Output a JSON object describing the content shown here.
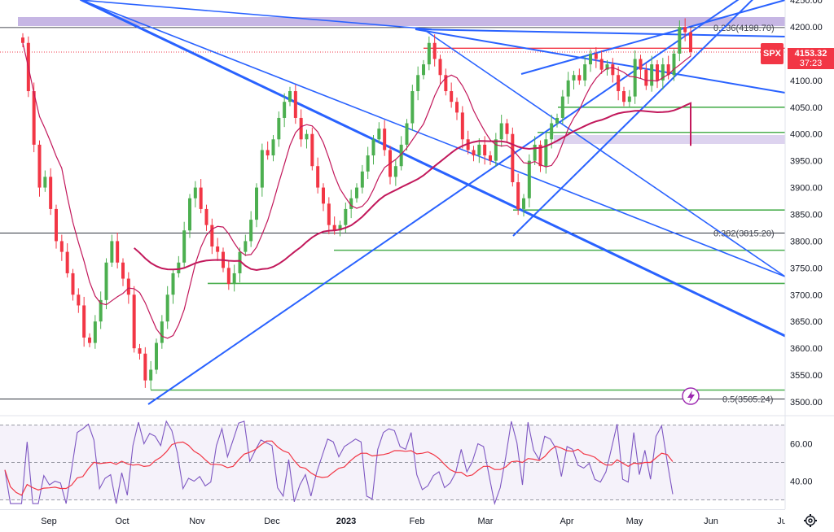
{
  "symbol_tag": "SPX",
  "last_price": "4153.32",
  "countdown": "37:23",
  "price_axis": {
    "ticks": [
      "4250.00",
      "4200.00",
      "4150.00",
      "4100.00",
      "4050.00",
      "4000.00",
      "3950.00",
      "3900.00",
      "3850.00",
      "3800.00",
      "3750.00",
      "3700.00",
      "3650.00",
      "3600.00",
      "3550.00",
      "3500.00"
    ],
    "values": [
      4250,
      4200,
      4150,
      4100,
      4050,
      4000,
      3950,
      3900,
      3850,
      3800,
      3750,
      3700,
      3650,
      3600,
      3550,
      3500
    ]
  },
  "rsi_axis": {
    "ticks": [
      "60.00",
      "40.00"
    ],
    "values": [
      60,
      40
    ]
  },
  "time_axis": [
    "Sep",
    "Oct",
    "Nov",
    "Dec",
    "2023",
    "Feb",
    "Mar",
    "Apr",
    "May",
    "Jun",
    "Ju"
  ],
  "fib_levels": [
    {
      "label": "0.236(4198.70)",
      "value": 4198.7
    },
    {
      "label": "0.382(3815.20)",
      "value": 3815.2
    },
    {
      "label": "0.5(3505.24)",
      "value": 3505.24
    }
  ],
  "horizontal_supports": [
    4210,
    4050,
    4003,
    3858,
    3783,
    3721,
    3522
  ],
  "resistance_level": 4160,
  "colors": {
    "up": "#4caf50",
    "down": "#f23645",
    "trendline": "#2962ff",
    "ma": "#c2185b",
    "support": "#4caf50",
    "fib": "#434651",
    "zone": "#b39ddb",
    "rsi": "#7e57c2",
    "rsi_ma": "#f23645"
  },
  "chart_data": {
    "type": "candlestick",
    "title": "",
    "x": [
      "Sep",
      "Oct",
      "Nov",
      "Dec",
      "2023",
      "Feb",
      "Mar",
      "Apr",
      "May",
      "Jun"
    ],
    "ylim": [
      3490,
      4260
    ],
    "close_series": {
      "name": "",
      "values": [
        4170,
        4080,
        3980,
        3900,
        3920,
        3860,
        3800,
        3780,
        3740,
        3700,
        3680,
        3620,
        3610,
        3650,
        3690,
        3760,
        3800,
        3760,
        3730,
        3700,
        3600,
        3590,
        3540,
        3560,
        3610,
        3650,
        3700,
        3740,
        3760,
        3820,
        3880,
        3900,
        3860,
        3830,
        3790,
        3780,
        3750,
        3720,
        3740,
        3780,
        3800,
        3840,
        3900,
        3970,
        3960,
        3990,
        4030,
        4060,
        4080,
        4030,
        3990,
        4000,
        3940,
        3900,
        3870,
        3830,
        3820,
        3830,
        3860,
        3880,
        3900,
        3930,
        3960,
        3990,
        4010,
        3970,
        3920,
        3940,
        3980,
        4020,
        4080,
        4110,
        4130,
        4170,
        4140,
        4110,
        4080,
        4060,
        4040,
        3990,
        3970,
        3960,
        3980,
        3960,
        3950,
        3990,
        4020,
        4000,
        3910,
        3860,
        3880,
        3950,
        3980,
        3940,
        3990,
        4020,
        4030,
        4070,
        4100,
        4110,
        4100,
        4130,
        4150,
        4140,
        4120,
        4130,
        4110,
        4080,
        4060,
        4070,
        4140,
        4120,
        4090,
        4130,
        4100,
        4130,
        4110,
        4150,
        4200,
        4190,
        4153
      ]
    },
    "ma_slow_tail": 3978,
    "rsi": {
      "range": [
        25,
        75
      ],
      "levels": [
        70,
        30
      ],
      "last": 54
    }
  }
}
